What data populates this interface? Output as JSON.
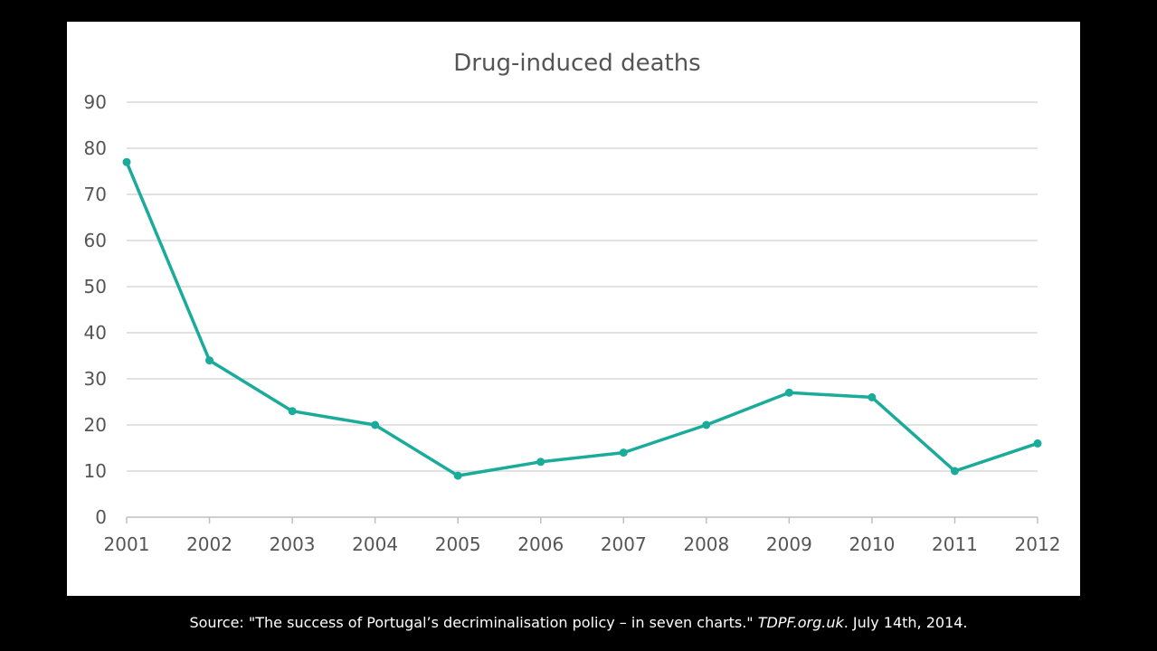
{
  "chart_data": {
    "type": "line",
    "title": "Drug-induced deaths",
    "xlabel": "",
    "ylabel": "",
    "x": [
      "2001",
      "2002",
      "2003",
      "2004",
      "2005",
      "2006",
      "2007",
      "2008",
      "2009",
      "2010",
      "2011",
      "2012"
    ],
    "series": [
      {
        "values": [
          77,
          34,
          23,
          20,
          9,
          12,
          14,
          20,
          27,
          26,
          10,
          16
        ]
      }
    ],
    "ylim": [
      0,
      90
    ],
    "yticks": [
      "0",
      "10",
      "20",
      "30",
      "40",
      "50",
      "60",
      "70",
      "80",
      "90"
    ],
    "grid": true,
    "line_color": "#1aab9b"
  },
  "source": {
    "prefix": "Source: \"The success of Portugal’s decriminalisation policy – in seven charts.\" ",
    "site": "TDPF.org.uk",
    "suffix": ". July 14th, 2014."
  }
}
